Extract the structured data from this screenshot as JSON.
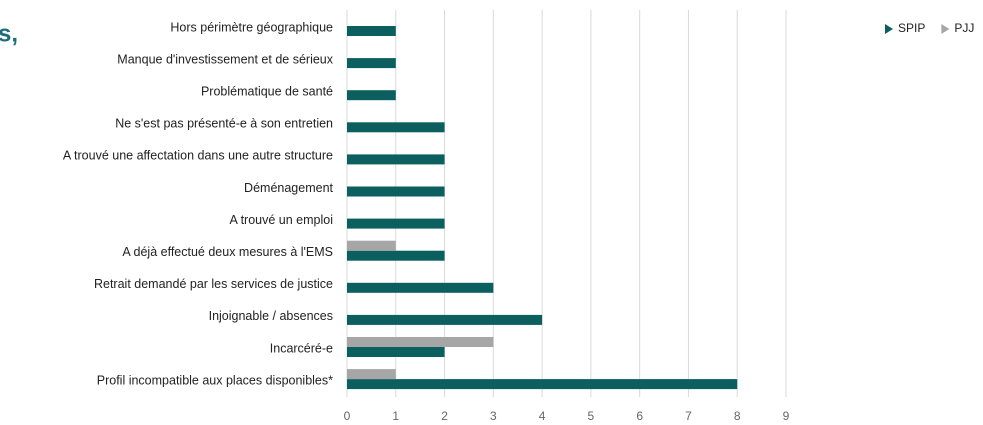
{
  "chart_data": {
    "type": "bar",
    "orientation": "horizontal",
    "title": "s,",
    "categories": [
      "Hors périmètre géographique",
      "Manque d'investissement et de sérieux",
      "Problématique de santé",
      "Ne s'est pas présenté-e à son entretien",
      "A trouvé une affectation dans une autre structure",
      "Déménagement",
      "A trouvé un emploi",
      "A déjà effectué deux mesures à l'EMS",
      "Retrait demandé par les services de justice",
      "Injoignable / absences",
      "Incarcéré-e",
      "Profil incompatible aux places disponibles*"
    ],
    "series": [
      {
        "name": "SPIP",
        "color": "#0b5f5f",
        "values": [
          1,
          1,
          1,
          2,
          2,
          2,
          2,
          2,
          3,
          4,
          2,
          8
        ]
      },
      {
        "name": "PJJ",
        "color": "#a6a6a6",
        "values": [
          null,
          null,
          null,
          null,
          null,
          null,
          null,
          1,
          null,
          null,
          3,
          1
        ]
      }
    ],
    "xlim": [
      0,
      9
    ],
    "xticks": [
      0,
      1,
      2,
      3,
      4,
      5,
      6,
      7,
      8,
      9
    ],
    "grid": true,
    "legend": "top-right"
  }
}
